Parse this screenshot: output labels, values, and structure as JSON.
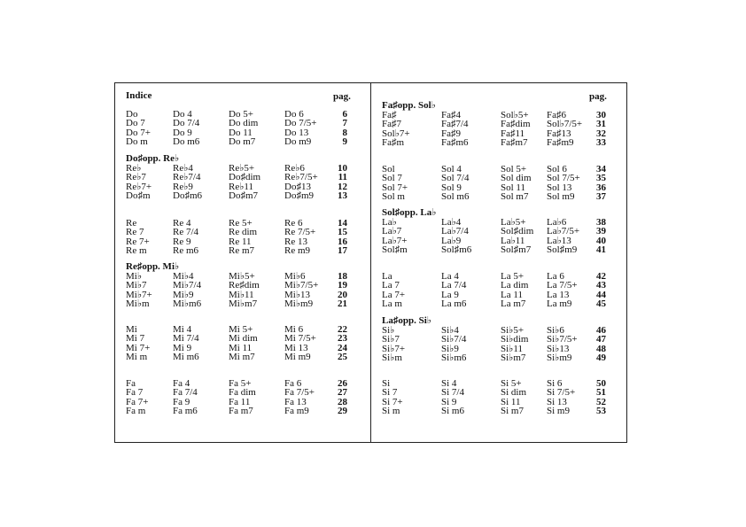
{
  "left_page": {
    "title": "Indice",
    "pag_label": "pag.",
    "groups": [
      {
        "header": "",
        "rows": [
          {
            "cells": [
              "Do",
              "Do 4",
              "Do 5+",
              "Do 6"
            ],
            "page": "6"
          },
          {
            "cells": [
              "Do 7",
              "Do 7/4",
              "Do dim",
              "Do 7/5+"
            ],
            "page": "7"
          },
          {
            "cells": [
              "Do 7+",
              "Do 9",
              "Do 11",
              "Do 13"
            ],
            "page": "8"
          },
          {
            "cells": [
              "Do m",
              "Do m6",
              "Do m7",
              "Do m9"
            ],
            "page": "9"
          }
        ]
      },
      {
        "header": "Do♯opp. Re♭",
        "rows": [
          {
            "cells": [
              "Re♭",
              "Re♭4",
              "Re♭5+",
              "Re♭6"
            ],
            "page": "10"
          },
          {
            "cells": [
              "Re♭7",
              "Re♭7/4",
              "Do♯dim",
              "Re♭7/5+"
            ],
            "page": "11"
          },
          {
            "cells": [
              "Re♭7+",
              "Re♭9",
              "Re♭11",
              "Do♯13"
            ],
            "page": "12"
          },
          {
            "cells": [
              "Do♯m",
              "Do♯m6",
              "Do♯m7",
              "Do♯m9"
            ],
            "page": "13"
          }
        ]
      },
      {
        "header": "",
        "rows": [
          {
            "cells": [
              "Re",
              "Re 4",
              "Re 5+",
              "Re 6"
            ],
            "page": "14"
          },
          {
            "cells": [
              "Re 7",
              "Re 7/4",
              "Re dim",
              "Re 7/5+"
            ],
            "page": "15"
          },
          {
            "cells": [
              "Re 7+",
              "Re 9",
              "Re 11",
              "Re 13"
            ],
            "page": "16"
          },
          {
            "cells": [
              "Re m",
              "Re m6",
              "Re m7",
              "Re m9"
            ],
            "page": "17"
          }
        ]
      },
      {
        "header": "Re♯opp. Mi♭",
        "rows": [
          {
            "cells": [
              "Mi♭",
              "Mi♭4",
              "Mi♭5+",
              "Mi♭6"
            ],
            "page": "18"
          },
          {
            "cells": [
              "Mi♭7",
              "Mi♭7/4",
              "Re♯dim",
              "Mi♭7/5+"
            ],
            "page": "19"
          },
          {
            "cells": [
              "Mi♭7+",
              "Mi♭9",
              "Mi♭11",
              "Mi♭13"
            ],
            "page": "20"
          },
          {
            "cells": [
              "Mi♭m",
              "Mi♭m6",
              "Mi♭m7",
              "Mi♭m9"
            ],
            "page": "21"
          }
        ]
      },
      {
        "header": "",
        "rows": [
          {
            "cells": [
              "Mi",
              "Mi 4",
              "Mi 5+",
              "Mi 6"
            ],
            "page": "22"
          },
          {
            "cells": [
              "Mi 7",
              "Mi 7/4",
              "Mi dim",
              "Mi 7/5+"
            ],
            "page": "23"
          },
          {
            "cells": [
              "Mi 7+",
              "Mi 9",
              "Mi 11",
              "Mi 13"
            ],
            "page": "24"
          },
          {
            "cells": [
              "Mi m",
              "Mi m6",
              "Mi m7",
              "Mi m9"
            ],
            "page": "25"
          }
        ]
      },
      {
        "header": "",
        "rows": [
          {
            "cells": [
              "Fa",
              "Fa 4",
              "Fa 5+",
              "Fa 6"
            ],
            "page": "26"
          },
          {
            "cells": [
              "Fa 7",
              "Fa 7/4",
              "Fa dim",
              "Fa 7/5+"
            ],
            "page": "27"
          },
          {
            "cells": [
              "Fa 7+",
              "Fa 9",
              "Fa 11",
              "Fa 13"
            ],
            "page": "28"
          },
          {
            "cells": [
              "Fa m",
              "Fa m6",
              "Fa m7",
              "Fa m9"
            ],
            "page": "29"
          }
        ]
      }
    ]
  },
  "right_page": {
    "pag_label": "pag.",
    "groups": [
      {
        "header": "Fa♯opp. Sol♭",
        "rows": [
          {
            "cells": [
              "Fa♯",
              "Fa♯4",
              "Sol♭5+",
              "Fa♯6"
            ],
            "page": "30"
          },
          {
            "cells": [
              "Fa♯7",
              "Fa♯7/4",
              "Fa♯dim",
              "Sol♭7/5+"
            ],
            "page": "31"
          },
          {
            "cells": [
              "Sol♭7+",
              "Fa♯9",
              "Fa♯11",
              "Fa♯13"
            ],
            "page": "32"
          },
          {
            "cells": [
              "Fa♯m",
              "Fa♯m6",
              "Fa♯m7",
              "Fa♯m9"
            ],
            "page": "33"
          }
        ]
      },
      {
        "header": "",
        "rows": [
          {
            "cells": [
              "Sol",
              "Sol 4",
              "Sol 5+",
              "Sol 6"
            ],
            "page": "34"
          },
          {
            "cells": [
              "Sol 7",
              "Sol 7/4",
              "Sol dim",
              "Sol 7/5+"
            ],
            "page": "35"
          },
          {
            "cells": [
              "Sol 7+",
              "Sol 9",
              "Sol 11",
              "Sol 13"
            ],
            "page": "36"
          },
          {
            "cells": [
              "Sol m",
              "Sol m6",
              "Sol m7",
              "Sol m9"
            ],
            "page": "37"
          }
        ]
      },
      {
        "header": "Sol♯opp. La♭",
        "rows": [
          {
            "cells": [
              "La♭",
              "La♭4",
              "La♭5+",
              "La♭6"
            ],
            "page": "38"
          },
          {
            "cells": [
              "La♭7",
              "La♭7/4",
              "Sol♯dim",
              "La♭7/5+"
            ],
            "page": "39"
          },
          {
            "cells": [
              "La♭7+",
              "La♭9",
              "La♭11",
              "La♭13"
            ],
            "page": "40"
          },
          {
            "cells": [
              "Sol♯m",
              "Sol♯m6",
              "Sol♯m7",
              "Sol♯m9"
            ],
            "page": "41"
          }
        ]
      },
      {
        "header": "",
        "rows": [
          {
            "cells": [
              "La",
              "La 4",
              "La 5+",
              "La 6"
            ],
            "page": "42"
          },
          {
            "cells": [
              "La 7",
              "La 7/4",
              "La dim",
              "La 7/5+"
            ],
            "page": "43"
          },
          {
            "cells": [
              "La 7+",
              "La 9",
              "La 11",
              "La 13"
            ],
            "page": "44"
          },
          {
            "cells": [
              "La m",
              "La m6",
              "La m7",
              "La m9"
            ],
            "page": "45"
          }
        ]
      },
      {
        "header": "La♯opp. Si♭",
        "rows": [
          {
            "cells": [
              "Si♭",
              "Si♭4",
              "Si♭5+",
              "Si♭6"
            ],
            "page": "46"
          },
          {
            "cells": [
              "Si♭7",
              "Si♭7/4",
              "Si♭dim",
              "Si♭7/5+"
            ],
            "page": "47"
          },
          {
            "cells": [
              "Si♭7+",
              "Si♭9",
              "Si♭11",
              "Si♭13"
            ],
            "page": "48"
          },
          {
            "cells": [
              "Si♭m",
              "Si♭m6",
              "Si♭m7",
              "Si♭m9"
            ],
            "page": "49"
          }
        ]
      },
      {
        "header": "",
        "rows": [
          {
            "cells": [
              "Si",
              "Si 4",
              "Si 5+",
              "Si 6"
            ],
            "page": "50"
          },
          {
            "cells": [
              "Si 7",
              "Si 7/4",
              "Si dim",
              "Si 7/5+"
            ],
            "page": "51"
          },
          {
            "cells": [
              "Si 7+",
              "Si 9",
              "Si 11",
              "Si 13"
            ],
            "page": "52"
          },
          {
            "cells": [
              "Si m",
              "Si m6",
              "Si m7",
              "Si m9"
            ],
            "page": "53"
          }
        ]
      }
    ]
  }
}
